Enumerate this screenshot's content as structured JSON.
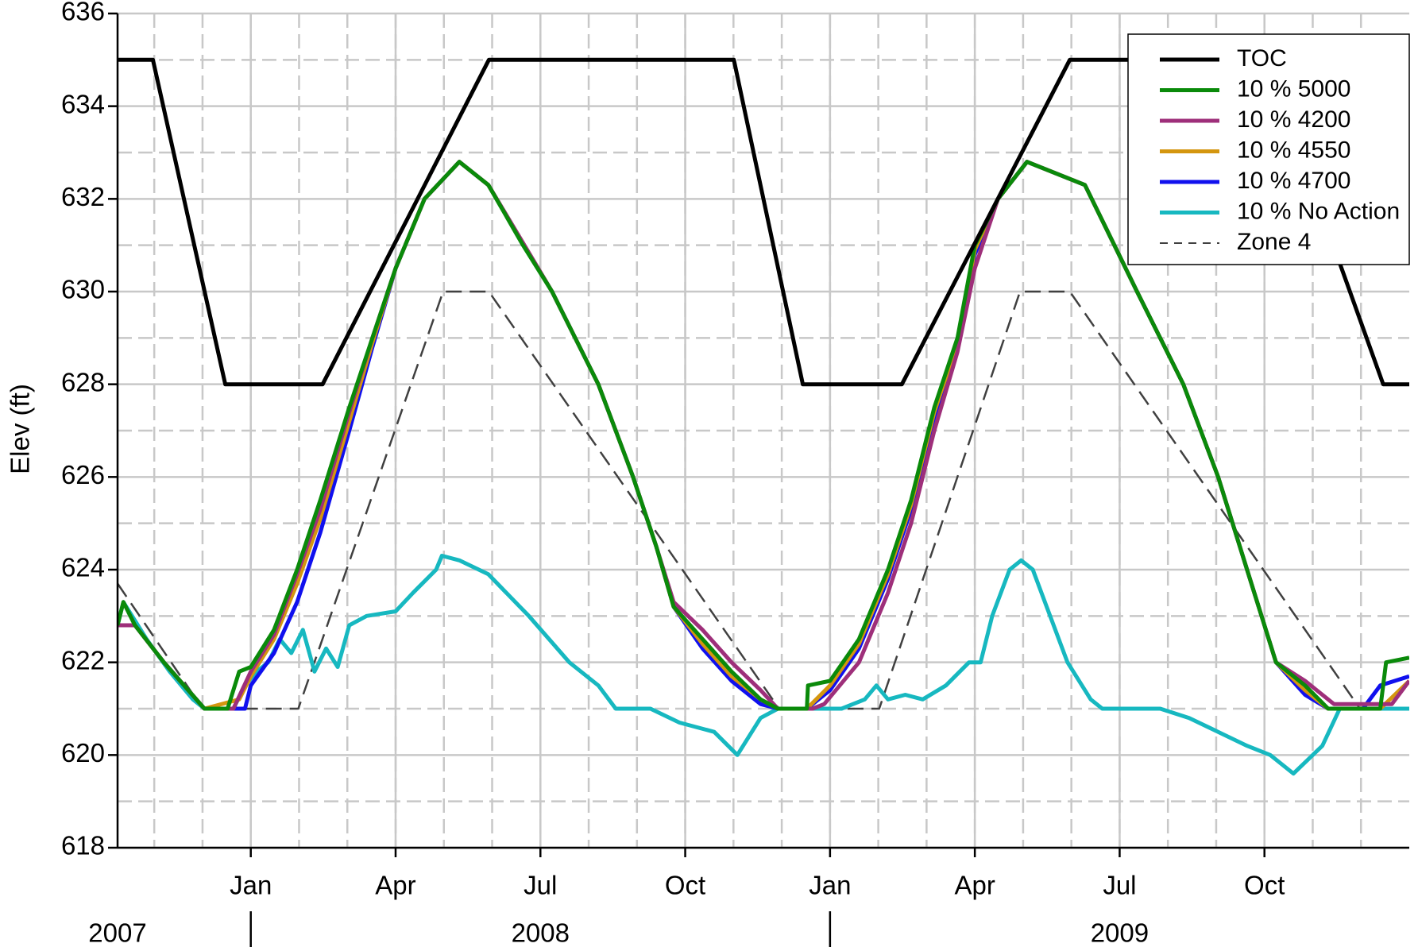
{
  "chart_data": {
    "type": "line",
    "ylabel": "Elev (ft)",
    "xlim": [
      2007.77,
      2010.0
    ],
    "ylim": [
      618,
      636
    ],
    "yticks": [
      618,
      620,
      622,
      624,
      626,
      628,
      630,
      632,
      634,
      636
    ],
    "xticks": [
      {
        "value": 2008.0,
        "label": "Jan"
      },
      {
        "value": 2008.25,
        "label": "Apr"
      },
      {
        "value": 2008.5,
        "label": "Jul"
      },
      {
        "value": 2008.75,
        "label": "Oct"
      },
      {
        "value": 2009.0,
        "label": "Jan"
      },
      {
        "value": 2009.25,
        "label": "Apr"
      },
      {
        "value": 2009.5,
        "label": "Jul"
      },
      {
        "value": 2009.75,
        "label": "Oct"
      }
    ],
    "years": [
      {
        "value": 2007,
        "label": "2007"
      },
      {
        "value": 2008,
        "label": "2008"
      },
      {
        "value": 2009,
        "label": "2009"
      }
    ],
    "grid": true,
    "minor_grid": true,
    "legend": "upper right",
    "series": [
      {
        "name": "TOC",
        "color": "#000000",
        "x": [
          2007.77,
          2007.831,
          2007.956,
          2008.124,
          2008.411,
          2008.834,
          2008.953,
          2009.124,
          2009.414,
          2009.754,
          2009.955,
          2010.0
        ],
        "values": [
          635,
          635,
          628,
          628,
          635,
          635,
          628,
          628,
          635,
          635,
          628,
          628
        ]
      },
      {
        "name": "10 % 5000",
        "color": "#0a8a0a",
        "x": [
          2007.77,
          2007.78,
          2007.8,
          2007.85,
          2007.92,
          2007.96,
          2007.98,
          2008.0,
          2008.04,
          2008.08,
          2008.12,
          2008.17,
          2008.21,
          2008.25,
          2008.3,
          2008.36,
          2008.41,
          2008.47,
          2008.52,
          2008.6,
          2008.66,
          2008.7,
          2008.73,
          2008.78,
          2008.83,
          2008.88,
          2008.91,
          2008.96,
          2008.962,
          2009.0,
          2009.05,
          2009.1,
          2009.14,
          2009.18,
          2009.22,
          2009.25,
          2009.29,
          2009.34,
          2009.44,
          2009.53,
          2009.61,
          2009.67,
          2009.72,
          2009.77,
          2009.82,
          2009.86,
          2009.95,
          2009.96,
          2010.0
        ],
        "values": [
          622.8,
          623.3,
          622.8,
          622,
          621,
          621,
          621.8,
          621.9,
          622.7,
          624,
          625.5,
          627.5,
          629,
          630.5,
          632,
          632.8,
          632.3,
          631,
          630,
          628,
          626,
          624.5,
          623.2,
          622.5,
          621.8,
          621.2,
          621,
          621,
          621.5,
          621.6,
          622.5,
          624,
          625.5,
          627.5,
          629,
          631,
          632,
          632.8,
          632.3,
          630,
          628,
          626,
          624,
          622,
          621.5,
          621,
          621,
          622,
          622.1
        ]
      },
      {
        "name": "10 % 4200",
        "color": "#9e2f7a",
        "x": [
          2007.77,
          2007.8,
          2007.85,
          2007.92,
          2007.97,
          2008.0,
          2008.04,
          2008.08,
          2008.12,
          2008.17,
          2008.21,
          2008.25,
          2008.3,
          2008.36,
          2008.41,
          2008.52,
          2008.6,
          2008.66,
          2008.7,
          2008.73,
          2008.78,
          2008.83,
          2008.88,
          2008.91,
          2008.97,
          2008.99,
          2009.05,
          2009.1,
          2009.14,
          2009.18,
          2009.22,
          2009.25,
          2009.29,
          2009.34,
          2009.44,
          2009.53,
          2009.61,
          2009.67,
          2009.72,
          2009.77,
          2009.82,
          2009.87,
          2009.97,
          2010.0
        ],
        "values": [
          622.8,
          622.8,
          622,
          621,
          621,
          621.8,
          622.6,
          623.9,
          625.3,
          627.4,
          629,
          630.5,
          632,
          632.8,
          632.3,
          630,
          628,
          626,
          624.5,
          623.3,
          622.7,
          622,
          621.4,
          621,
          621,
          621.1,
          622,
          623.5,
          625,
          627,
          628.7,
          630.5,
          632,
          632.8,
          632.3,
          630,
          628,
          626,
          624,
          622,
          621.6,
          621.1,
          621.1,
          621.6
        ]
      },
      {
        "name": "10 % 4550",
        "color": "#d4960f",
        "x": [
          2007.77,
          2007.8,
          2007.85,
          2007.92,
          2007.98,
          2008.0,
          2008.04,
          2008.08,
          2008.12,
          2008.17,
          2008.21,
          2008.25,
          2008.3,
          2008.36,
          2008.41,
          2008.52,
          2008.6,
          2008.66,
          2008.7,
          2008.73,
          2008.78,
          2008.83,
          2008.88,
          2008.91,
          2008.96,
          2009.0,
          2009.05,
          2009.1,
          2009.14,
          2009.18,
          2009.22,
          2009.25,
          2009.29,
          2009.34,
          2009.44,
          2009.53,
          2009.61,
          2009.67,
          2009.72,
          2009.77,
          2009.82,
          2009.86,
          2009.95,
          2010.0
        ],
        "values": [
          622.8,
          622.8,
          622,
          621,
          621.2,
          621.7,
          622.5,
          623.7,
          625.1,
          627.2,
          628.9,
          630.5,
          632,
          632.8,
          632.3,
          630,
          628,
          626,
          624.5,
          623.2,
          622.4,
          621.7,
          621.2,
          621,
          621,
          621.5,
          622.4,
          623.9,
          625.4,
          627.4,
          628.9,
          630.9,
          632,
          632.8,
          632.3,
          630,
          628,
          626,
          624,
          622,
          621.4,
          621,
          621,
          621.6
        ]
      },
      {
        "name": "10 % 4700",
        "color": "#1010ee",
        "x": [
          2007.77,
          2007.8,
          2007.85,
          2007.92,
          2007.99,
          2008.0,
          2008.04,
          2008.08,
          2008.12,
          2008.17,
          2008.21,
          2008.25,
          2008.3,
          2008.36,
          2008.41,
          2008.52,
          2008.6,
          2008.66,
          2008.7,
          2008.73,
          2008.78,
          2008.83,
          2008.88,
          2008.91,
          2008.96,
          2009.0,
          2009.05,
          2009.1,
          2009.14,
          2009.18,
          2009.22,
          2009.25,
          2009.29,
          2009.34,
          2009.44,
          2009.53,
          2009.61,
          2009.67,
          2009.72,
          2009.77,
          2009.82,
          2009.86,
          2009.92,
          2009.95,
          2010.0
        ],
        "values": [
          622.8,
          622.8,
          622,
          621,
          621,
          621.5,
          622.2,
          623.3,
          624.8,
          627,
          628.8,
          630.5,
          632,
          632.8,
          632.3,
          630,
          628,
          626,
          624.5,
          623.2,
          622.3,
          621.6,
          621.1,
          621,
          621,
          621.4,
          622.3,
          623.8,
          625.3,
          627.3,
          628.8,
          630.8,
          632,
          632.8,
          632.3,
          630,
          628,
          626,
          624,
          622,
          621.3,
          621,
          621,
          621.5,
          621.7
        ]
      },
      {
        "name": "10 % No Action",
        "color": "#17b8c0",
        "x": [
          2007.77,
          2007.78,
          2007.82,
          2007.86,
          2007.9,
          2007.92,
          2007.97,
          2007.99,
          2008.01,
          2008.03,
          2008.05,
          2008.07,
          2008.09,
          2008.11,
          2008.13,
          2008.15,
          2008.17,
          2008.2,
          2008.25,
          2008.28,
          2008.32,
          2008.33,
          2008.36,
          2008.41,
          2008.48,
          2008.55,
          2008.6,
          2008.63,
          2008.69,
          2008.74,
          2008.8,
          2008.84,
          2008.88,
          2008.91,
          2009.02,
          2009.06,
          2009.08,
          2009.1,
          2009.13,
          2009.16,
          2009.2,
          2009.24,
          2009.26,
          2009.28,
          2009.31,
          2009.33,
          2009.35,
          2009.38,
          2009.41,
          2009.45,
          2009.47,
          2009.57,
          2009.62,
          2009.67,
          2009.72,
          2009.76,
          2009.8,
          2009.85,
          2009.88,
          2010.0
        ],
        "values": [
          622.8,
          623.3,
          622.5,
          621.8,
          621.2,
          621,
          621,
          621.5,
          621.8,
          622,
          622.5,
          622.2,
          622.7,
          621.8,
          622.3,
          621.9,
          622.8,
          623,
          623.1,
          623.5,
          624,
          624.3,
          624.2,
          623.9,
          623,
          622,
          621.5,
          621,
          621,
          620.7,
          620.5,
          620,
          620.8,
          621,
          621,
          621.2,
          621.5,
          621.2,
          621.3,
          621.2,
          621.5,
          622,
          622,
          623,
          624,
          624.2,
          624,
          623,
          622,
          621.2,
          621,
          621,
          620.8,
          620.5,
          620.2,
          620,
          619.6,
          620.2,
          621,
          621
        ]
      },
      {
        "name": "Zone 4",
        "color": "#404040",
        "dashed": true,
        "x": [
          2007.77,
          2007.917,
          2008.082,
          2008.332,
          2008.411,
          2008.912,
          2009.085,
          2009.328,
          2009.414,
          2009.915,
          2010.0
        ],
        "values": [
          623.7,
          621,
          621,
          630,
          630,
          621,
          621,
          630,
          630,
          621,
          621
        ]
      }
    ]
  }
}
